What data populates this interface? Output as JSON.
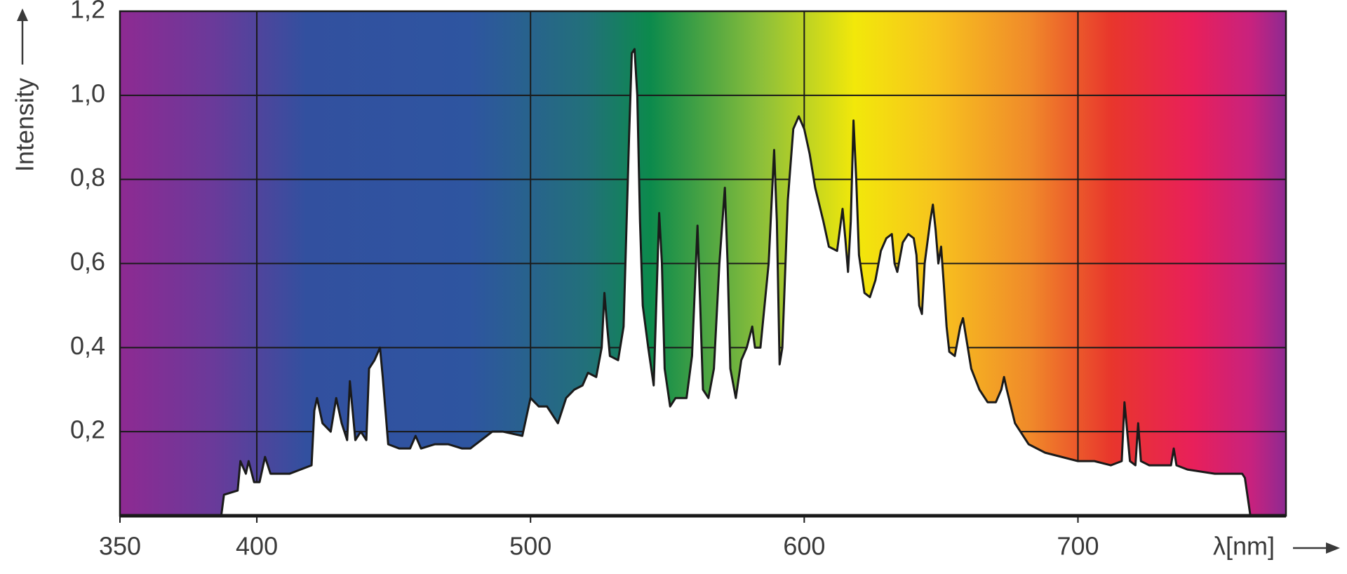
{
  "chart_data": {
    "type": "line",
    "x_label": "λ[nm]",
    "y_label": "Intensity",
    "xlim": [
      350,
      776
    ],
    "xticks": [
      350,
      400,
      500,
      600,
      700
    ],
    "ylim": [
      0,
      1.2
    ],
    "yticks": [
      {
        "value": 0.2,
        "label": "0,2"
      },
      {
        "value": 0.4,
        "label": "0,4"
      },
      {
        "value": 0.6,
        "label": "0,6"
      },
      {
        "value": 0.8,
        "label": "0,8"
      },
      {
        "value": 1.0,
        "label": "1,0"
      },
      {
        "value": 1.2,
        "label": "1,2"
      }
    ],
    "grid": true,
    "x": [
      387,
      388,
      393,
      394,
      396,
      397,
      399,
      401,
      403,
      405,
      412,
      420,
      421,
      422,
      424,
      427,
      429,
      431,
      433,
      434,
      436,
      438,
      440,
      441,
      443,
      445,
      446,
      448,
      452,
      456,
      458,
      460,
      465,
      470,
      475,
      478,
      482,
      486,
      490,
      497,
      500,
      503,
      506,
      510,
      513,
      516,
      519,
      521,
      524,
      526,
      527,
      528,
      529,
      532,
      534,
      536,
      537,
      538,
      539,
      540,
      541,
      543,
      545,
      547,
      548,
      549,
      551,
      553,
      557,
      559,
      561,
      562,
      563,
      565,
      567,
      569,
      571,
      572,
      573,
      575,
      577,
      579,
      581,
      582,
      584,
      587,
      589,
      590,
      591,
      592,
      594,
      596,
      598,
      600,
      602,
      604,
      607,
      609,
      612,
      614,
      615,
      616,
      617,
      618,
      619,
      620,
      622,
      624,
      626,
      628,
      630,
      632,
      633,
      634,
      636,
      638,
      640,
      641,
      642,
      643,
      644,
      646,
      647,
      648,
      649,
      650,
      651,
      652,
      653,
      655,
      657,
      658,
      659,
      661,
      664,
      667,
      670,
      672,
      673,
      674,
      677,
      682,
      688,
      694,
      700,
      706,
      712,
      716,
      717,
      718,
      719,
      721,
      722,
      723,
      726,
      734,
      735,
      736,
      740,
      750,
      760,
      761,
      763
    ],
    "series": [
      {
        "color": "#1a1a1a",
        "fill": "#ffffff",
        "values": [
          0,
          0.05,
          0.06,
          0.13,
          0.1,
          0.13,
          0.08,
          0.08,
          0.14,
          0.1,
          0.1,
          0.12,
          0.25,
          0.28,
          0.22,
          0.2,
          0.28,
          0.22,
          0.18,
          0.32,
          0.18,
          0.2,
          0.18,
          0.35,
          0.37,
          0.4,
          0.33,
          0.17,
          0.16,
          0.16,
          0.19,
          0.16,
          0.17,
          0.17,
          0.16,
          0.16,
          0.18,
          0.2,
          0.2,
          0.19,
          0.28,
          0.26,
          0.26,
          0.22,
          0.28,
          0.3,
          0.31,
          0.34,
          0.33,
          0.4,
          0.53,
          0.45,
          0.38,
          0.37,
          0.45,
          0.9,
          1.1,
          1.11,
          1.0,
          0.7,
          0.5,
          0.4,
          0.31,
          0.72,
          0.6,
          0.35,
          0.26,
          0.28,
          0.28,
          0.38,
          0.69,
          0.5,
          0.3,
          0.28,
          0.35,
          0.6,
          0.78,
          0.6,
          0.35,
          0.28,
          0.37,
          0.4,
          0.45,
          0.4,
          0.4,
          0.6,
          0.87,
          0.7,
          0.36,
          0.4,
          0.75,
          0.92,
          0.95,
          0.92,
          0.86,
          0.78,
          0.7,
          0.64,
          0.63,
          0.73,
          0.66,
          0.58,
          0.7,
          0.94,
          0.8,
          0.62,
          0.53,
          0.52,
          0.56,
          0.63,
          0.66,
          0.67,
          0.6,
          0.58,
          0.65,
          0.67,
          0.66,
          0.62,
          0.5,
          0.48,
          0.6,
          0.7,
          0.74,
          0.68,
          0.6,
          0.64,
          0.55,
          0.45,
          0.39,
          0.38,
          0.45,
          0.47,
          0.43,
          0.35,
          0.3,
          0.27,
          0.27,
          0.3,
          0.33,
          0.3,
          0.22,
          0.17,
          0.15,
          0.14,
          0.13,
          0.13,
          0.12,
          0.13,
          0.27,
          0.2,
          0.13,
          0.12,
          0.22,
          0.13,
          0.12,
          0.12,
          0.16,
          0.12,
          0.11,
          0.1,
          0.1,
          0.09,
          0
        ]
      }
    ]
  }
}
